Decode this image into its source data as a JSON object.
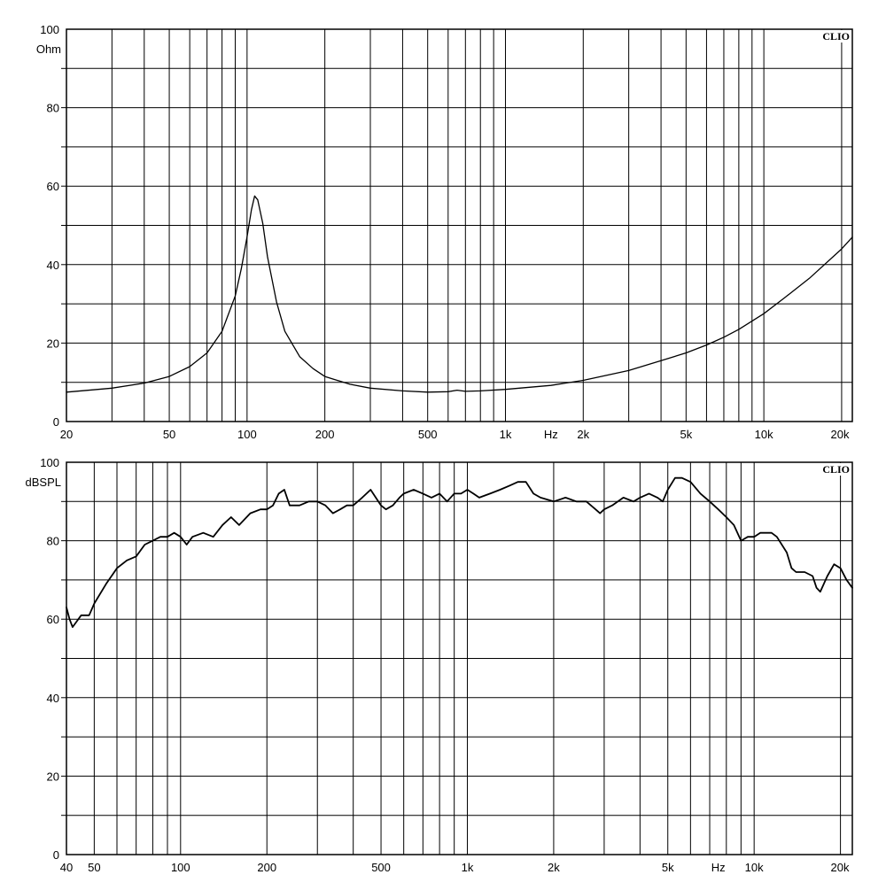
{
  "chart_data": [
    {
      "type": "line",
      "brand": "CLIO",
      "xscale": "log",
      "xlim": [
        20,
        22000
      ],
      "ylim": [
        0,
        100
      ],
      "grid": true,
      "ylabel": "Ohm",
      "xunit": "Hz",
      "unit_tick_after": "1k",
      "yticks": [
        {
          "value": 0,
          "label": "0"
        },
        {
          "value": 20,
          "label": "20"
        },
        {
          "value": 40,
          "label": "40"
        },
        {
          "value": 60,
          "label": "60"
        },
        {
          "value": 80,
          "label": "80"
        },
        {
          "value": 100,
          "label": "100"
        }
      ],
      "xticks": [
        {
          "value": 20,
          "label": "20"
        },
        {
          "value": 50,
          "label": "50"
        },
        {
          "value": 100,
          "label": "100"
        },
        {
          "value": 200,
          "label": "200"
        },
        {
          "value": 500,
          "label": "500"
        },
        {
          "value": 1000,
          "label": "1k"
        },
        {
          "value": 2000,
          "label": "2k"
        },
        {
          "value": 5000,
          "label": "5k"
        },
        {
          "value": 10000,
          "label": "10k"
        },
        {
          "value": 20000,
          "label": "20k"
        }
      ],
      "series": [
        {
          "x": [
            20,
            30,
            40,
            50,
            60,
            70,
            80,
            90,
            95,
            100,
            104,
            107,
            110,
            115,
            120,
            130,
            140,
            160,
            180,
            200,
            250,
            300,
            400,
            500,
            600,
            650,
            700,
            800,
            1000,
            1500,
            2000,
            3000,
            4000,
            5000,
            6000,
            7000,
            8000,
            10000,
            12000,
            15000,
            20000,
            22000
          ],
          "y": [
            7.5,
            8.5,
            9.8,
            11.5,
            14.0,
            17.5,
            23.0,
            32.0,
            39.0,
            47.0,
            54.0,
            57.5,
            56.5,
            50.5,
            42.0,
            30.5,
            23.0,
            16.5,
            13.5,
            11.5,
            9.5,
            8.5,
            7.8,
            7.5,
            7.6,
            8.0,
            7.7,
            7.8,
            8.2,
            9.2,
            10.5,
            13.0,
            15.5,
            17.5,
            19.5,
            21.5,
            23.5,
            27.5,
            31.5,
            36.5,
            44.0,
            47.0
          ]
        }
      ]
    },
    {
      "type": "line",
      "brand": "CLIO",
      "xscale": "log",
      "xlim": [
        40,
        22000
      ],
      "ylim": [
        0,
        100
      ],
      "grid": true,
      "ylabel": "dBSPL",
      "xunit": "Hz",
      "unit_tick_after": "5k",
      "yticks": [
        {
          "value": 0,
          "label": "0"
        },
        {
          "value": 20,
          "label": "20"
        },
        {
          "value": 40,
          "label": "40"
        },
        {
          "value": 60,
          "label": "60"
        },
        {
          "value": 80,
          "label": "80"
        },
        {
          "value": 100,
          "label": "100"
        }
      ],
      "xticks": [
        {
          "value": 40,
          "label": "40"
        },
        {
          "value": 50,
          "label": "50"
        },
        {
          "value": 100,
          "label": "100"
        },
        {
          "value": 200,
          "label": "200"
        },
        {
          "value": 500,
          "label": "500"
        },
        {
          "value": 1000,
          "label": "1k"
        },
        {
          "value": 2000,
          "label": "2k"
        },
        {
          "value": 5000,
          "label": "5k"
        },
        {
          "value": 10000,
          "label": "10k"
        },
        {
          "value": 20000,
          "label": "20k"
        }
      ],
      "series": [
        {
          "x": [
            40,
            41,
            42,
            43,
            45,
            48,
            50,
            55,
            60,
            65,
            70,
            75,
            80,
            85,
            90,
            95,
            100,
            105,
            110,
            120,
            130,
            140,
            150,
            160,
            175,
            190,
            200,
            210,
            220,
            230,
            240,
            260,
            280,
            300,
            320,
            340,
            360,
            380,
            400,
            430,
            460,
            500,
            520,
            550,
            580,
            600,
            650,
            700,
            750,
            800,
            850,
            900,
            950,
            1000,
            1050,
            1100,
            1200,
            1300,
            1400,
            1500,
            1600,
            1700,
            1800,
            2000,
            2200,
            2400,
            2600,
            2800,
            2900,
            3000,
            3200,
            3500,
            3800,
            4000,
            4300,
            4600,
            4800,
            5000,
            5300,
            5600,
            6000,
            6500,
            7000,
            7500,
            8000,
            8500,
            9000,
            9500,
            10000,
            10500,
            11000,
            11500,
            12000,
            13000,
            13500,
            14000,
            15000,
            16000,
            16500,
            17000,
            18000,
            19000,
            20000,
            21000,
            22000
          ],
          "y": [
            63,
            60,
            58,
            59,
            61,
            61,
            64,
            69,
            73,
            75,
            76,
            79,
            80,
            81,
            81,
            82,
            81,
            79,
            81,
            82,
            81,
            84,
            86,
            84,
            87,
            88,
            88,
            89,
            92,
            93,
            89,
            89,
            90,
            90,
            89,
            87,
            88,
            89,
            89,
            91,
            93,
            89,
            88,
            89,
            91,
            92,
            93,
            92,
            91,
            92,
            90,
            92,
            92,
            93,
            92,
            91,
            92,
            93,
            94,
            95,
            95,
            92,
            91,
            90,
            91,
            90,
            90,
            88,
            87,
            88,
            89,
            91,
            90,
            91,
            92,
            91,
            90,
            93,
            96,
            96,
            95,
            92,
            90,
            88,
            86,
            84,
            80,
            81,
            81,
            82,
            82,
            82,
            81,
            77,
            73,
            72,
            72,
            71,
            68,
            67,
            71,
            74,
            73,
            70,
            68
          ]
        }
      ]
    }
  ]
}
